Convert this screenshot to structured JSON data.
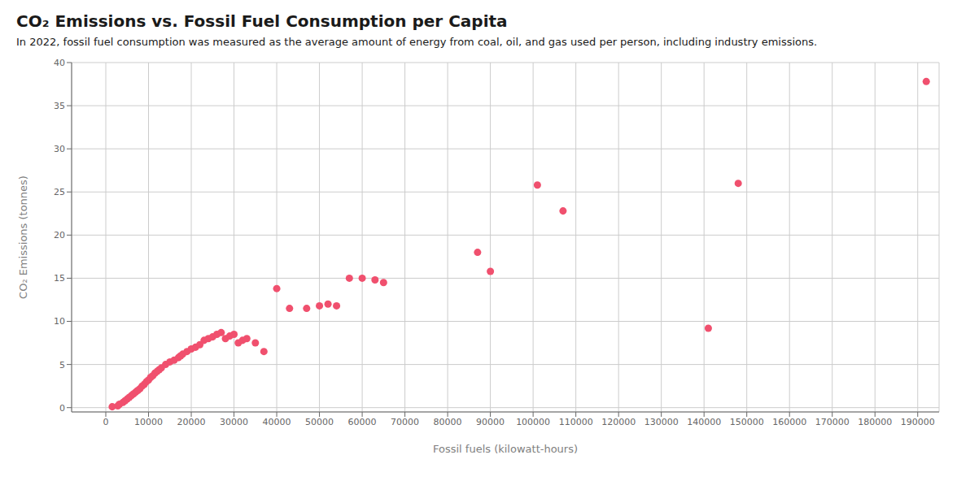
{
  "chart_data": {
    "type": "scatter",
    "title": "CO₂ Emissions vs. Fossil Fuel Consumption per Capita",
    "subtitle": "In 2022, fossil fuel consumption was measured as the average amount of energy from coal, oil, and gas used per person, including industry emissions.",
    "xlabel": "Fossil fuels (kilowatt-hours)",
    "ylabel": "CO₂ Emissions (tonnes)",
    "x": [
      1500,
      2800,
      3200,
      4000,
      4500,
      5000,
      5500,
      6000,
      6500,
      7000,
      7500,
      8000,
      8500,
      9000,
      9500,
      10000,
      10500,
      11000,
      11500,
      12000,
      12500,
      13000,
      14000,
      15000,
      16000,
      17000,
      17500,
      18000,
      19000,
      20000,
      21000,
      22000,
      23000,
      24000,
      25000,
      26000,
      27000,
      28000,
      29000,
      30000,
      31000,
      32000,
      33000,
      35000,
      37000,
      40000,
      43000,
      47000,
      50000,
      52000,
      54000,
      57000,
      60000,
      63000,
      65000,
      87000,
      90000,
      101000,
      107000,
      141000,
      148000,
      192000
    ],
    "values": [
      0.1,
      0.2,
      0.4,
      0.6,
      0.8,
      1.0,
      1.2,
      1.4,
      1.6,
      1.8,
      2.0,
      2.2,
      2.5,
      2.7,
      3.0,
      3.2,
      3.5,
      3.7,
      4.0,
      4.2,
      4.4,
      4.6,
      5.0,
      5.3,
      5.5,
      5.8,
      6.0,
      6.2,
      6.5,
      6.8,
      7.0,
      7.3,
      7.8,
      8.0,
      8.2,
      8.5,
      8.7,
      8.0,
      8.3,
      8.5,
      7.5,
      7.8,
      8.0,
      7.5,
      6.5,
      13.8,
      11.5,
      11.5,
      11.8,
      12.0,
      11.8,
      15.0,
      15.0,
      14.8,
      14.5,
      18.0,
      15.8,
      25.8,
      22.8,
      9.2,
      26.0,
      37.8
    ],
    "color": "#F0506E",
    "xlim": [
      -8000,
      195000
    ],
    "ylim": [
      -0.5,
      40
    ],
    "xticks": [
      0,
      10000,
      20000,
      30000,
      40000,
      50000,
      60000,
      70000,
      80000,
      90000,
      100000,
      110000,
      120000,
      130000,
      140000,
      150000,
      160000,
      170000,
      180000,
      190000
    ],
    "yticks": [
      0,
      5,
      10,
      15,
      20,
      25,
      30,
      35,
      40
    ],
    "grid": true
  }
}
